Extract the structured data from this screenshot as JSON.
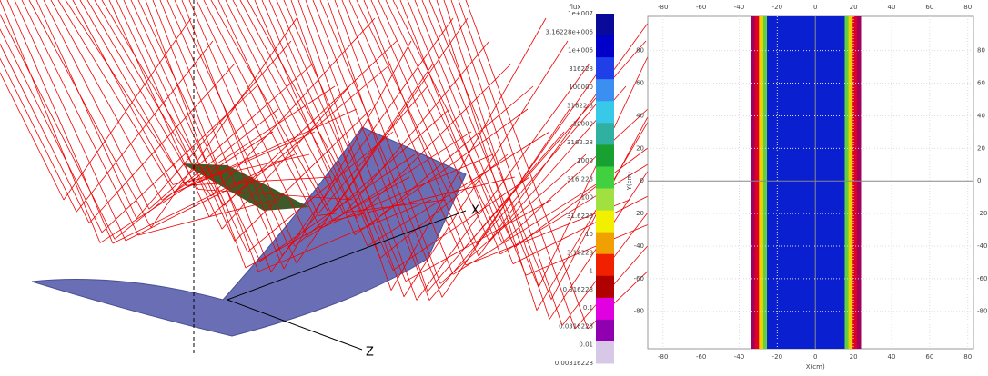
{
  "scene": {
    "axis_labels": [
      "X",
      "Z"
    ]
  },
  "colorbar": {
    "title": "flux",
    "labels": [
      "1e+007",
      "3.16228e+006",
      "1e+006",
      "316228",
      "100000",
      "31622.8",
      "10000",
      "3162.28",
      "1000",
      "316.228",
      "100",
      "31.6228",
      "10",
      "3.16228",
      "1",
      "0.316228",
      "0.1",
      "0.0316228",
      "0.01",
      "0.00316228"
    ]
  },
  "map": {
    "x_label": "X(cm)",
    "y_label": "Y(cm)",
    "xlim": [
      -88,
      83
    ],
    "ylim": [
      -103,
      101
    ],
    "xticks": [
      -80,
      -60,
      -40,
      -20,
      0,
      20,
      40,
      60,
      80
    ],
    "yticks": [
      -80,
      -60,
      -40,
      -20,
      0,
      20,
      40,
      60,
      80
    ],
    "flux_band": [
      -34,
      24
    ]
  }
}
